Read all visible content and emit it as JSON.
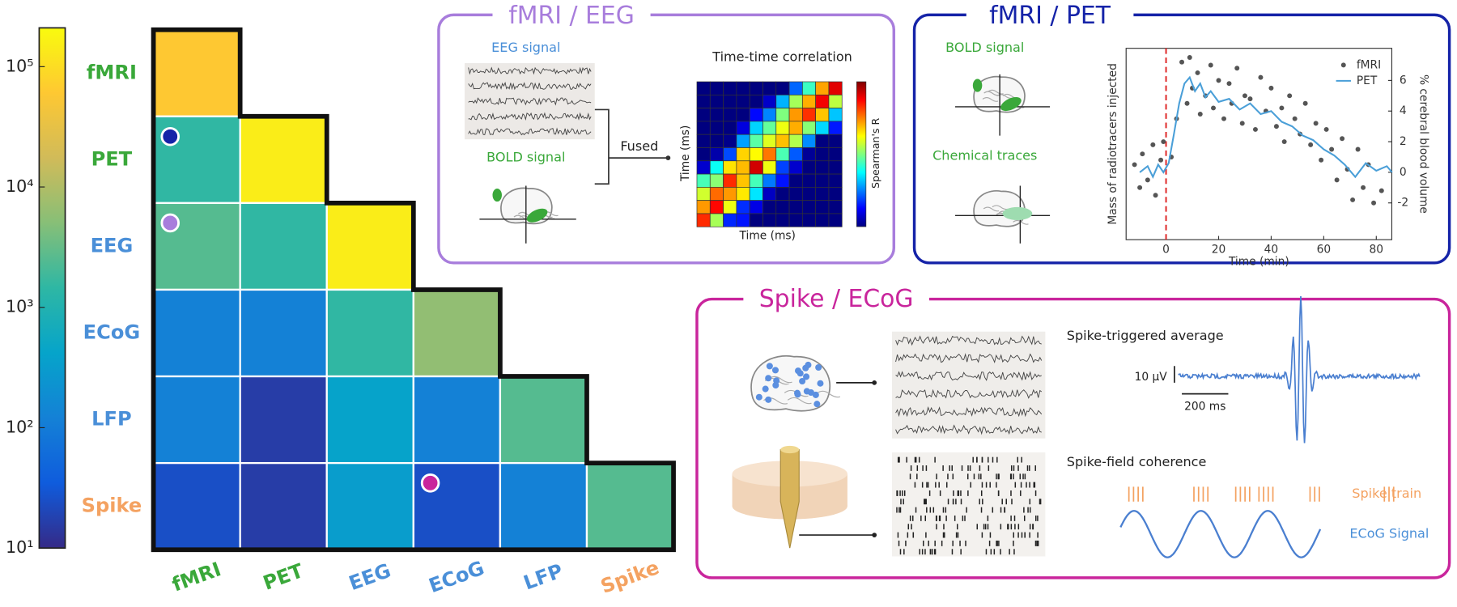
{
  "heatmap": {
    "modalities": [
      "fMRI",
      "PET",
      "EEG",
      "ECoG",
      "LFP",
      "Spike"
    ],
    "label_colors": [
      "#3aa83a",
      "#3aa83a",
      "#4a8fd8",
      "#4a8fd8",
      "#4a8fd8",
      "#f4a261"
    ],
    "values": [
      [
        60000
      ],
      [
        1500,
        150000
      ],
      [
        2500,
        1500,
        150000
      ],
      [
        120,
        120,
        1500,
        6000
      ],
      [
        120,
        16,
        400,
        120,
        2500
      ],
      [
        25,
        16,
        330,
        25,
        120,
        2500
      ]
    ],
    "scale": "log",
    "lim": [
      10,
      210000
    ],
    "ticks": [
      {
        "value": 10,
        "label": "10¹"
      },
      {
        "value": 100,
        "label": "10²"
      },
      {
        "value": 1000,
        "label": "10³"
      },
      {
        "value": 10000,
        "label": "10⁴"
      },
      {
        "value": 100000,
        "label": "10⁵"
      }
    ],
    "colormap": [
      "#352a87",
      "#0f5cdd",
      "#1481d6",
      "#06a4ca",
      "#2eb7a4",
      "#87bf77",
      "#d1bb59",
      "#fec832",
      "#f9fb0e"
    ]
  },
  "fmri_eeg": {
    "title": "fMRI / EEG",
    "eeg_label": "EEG signal",
    "bold_label": "BOLD signal",
    "fused_label": "Fused",
    "corr_title": "Time-time correlation",
    "corr_xlabel": "Time (ms)",
    "corr_ylabel": "Time (ms)",
    "colorbar_label": "Spearman's R"
  },
  "fmri_pet": {
    "title": "fMRI / PET",
    "bold_label": "BOLD signal",
    "chem_label": "Chemical traces",
    "chart": {
      "type": "scatter",
      "xlabel": "Time (min)",
      "ylabel": "Mass of radiotracers injected",
      "y2label": "% cerebral blood volume",
      "xlim": [
        -15.2,
        85.9
      ],
      "xticks": [
        0,
        20,
        40,
        60,
        80
      ],
      "y2lim": [
        -4.4,
        8.1
      ],
      "y2ticks": [
        -2,
        0,
        2,
        4,
        6
      ],
      "vline_x": 0,
      "legend": "upper right",
      "series": [
        {
          "name": "fMRI",
          "color": "#555555",
          "axis": "y2",
          "x": [
            -12,
            -10,
            -9,
            -7,
            -5,
            -4,
            -2,
            -1,
            2,
            4,
            6,
            8,
            9,
            10,
            12,
            13,
            15,
            17,
            18,
            20,
            22,
            24,
            25,
            27,
            29,
            30,
            32,
            34,
            36,
            38,
            40,
            42,
            44,
            45,
            47,
            49,
            51,
            53,
            55,
            57,
            59,
            61,
            63,
            65,
            67,
            69,
            71,
            73,
            75,
            77,
            79,
            82
          ],
          "values": [
            0.5,
            -1,
            1.2,
            -0.5,
            1.8,
            -1.5,
            0.8,
            2,
            1,
            3.5,
            7.2,
            4.5,
            7.5,
            5.5,
            6.5,
            3.8,
            5,
            7,
            4.2,
            6,
            3.5,
            5.8,
            4.5,
            6.8,
            3.2,
            5,
            4.8,
            2.8,
            6.2,
            4,
            5.5,
            3,
            4.2,
            2,
            5,
            3.5,
            2.5,
            4.5,
            1.8,
            3.2,
            0.8,
            2.8,
            1.5,
            -0.5,
            2.2,
            0.2,
            -1.8,
            1.5,
            -1,
            0.5,
            -2,
            -1.2
          ]
        },
        {
          "name": "PET",
          "color": "#4a9fd8",
          "axis": "y2",
          "x": [
            -10,
            -7,
            -5,
            -3,
            -1,
            1,
            3,
            5,
            7,
            9,
            11,
            13,
            15,
            17,
            20,
            24,
            28,
            32,
            36,
            40,
            44,
            48,
            52,
            56,
            60,
            64,
            68,
            72,
            76,
            80,
            84,
            86
          ],
          "values": [
            0,
            0.4,
            -0.3,
            0.5,
            0,
            0.6,
            2.5,
            4.5,
            5.8,
            6.2,
            5.3,
            5.8,
            4.9,
            5.3,
            4.6,
            4.8,
            4.1,
            4.5,
            3.8,
            4,
            3.3,
            3,
            2.4,
            2.1,
            1.5,
            1.1,
            0.5,
            -0.3,
            0.6,
            0.1,
            0.4,
            0
          ]
        }
      ]
    }
  },
  "spike_ecog": {
    "title": "Spike / ECoG",
    "sta_title": "Spike-triggered average",
    "scale_v": "10 µV",
    "scale_t": "200 ms",
    "sfc_title": "Spike-field coherence",
    "spike_train": "Spike train",
    "ecog_signal": "ECoG Signal"
  }
}
